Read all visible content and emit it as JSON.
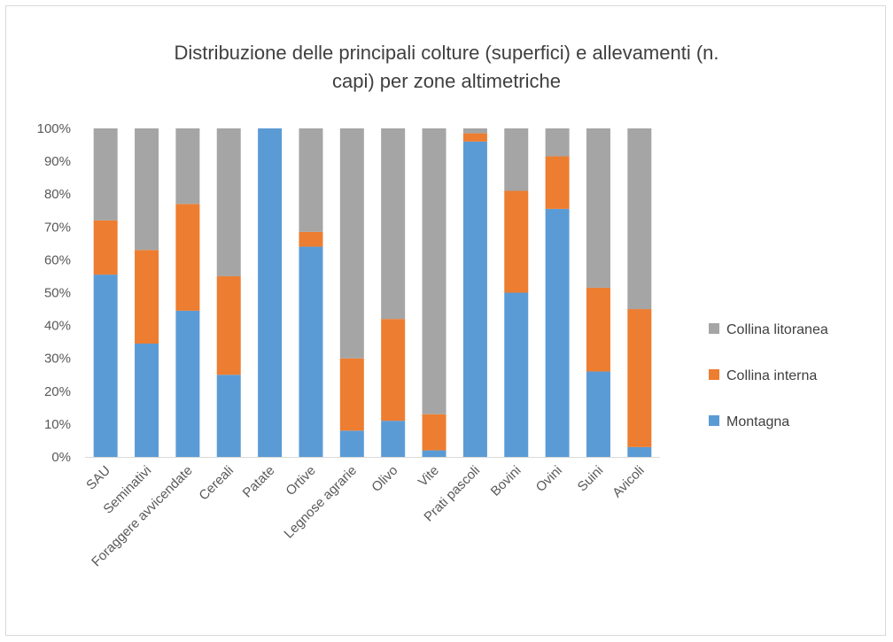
{
  "chart_data": {
    "type": "bar",
    "stacked": true,
    "title_line1": "Distribuzione delle principali colture (superfici) e allevamenti (n.",
    "title_line2": "capi) per zone altimetriche",
    "xlabel": "",
    "ylabel": "",
    "ylim": [
      0,
      100
    ],
    "y_ticks": [
      "0%",
      "10%",
      "20%",
      "30%",
      "40%",
      "50%",
      "60%",
      "70%",
      "80%",
      "90%",
      "100%"
    ],
    "grid": false,
    "legend_position": "right",
    "categories": [
      "SAU",
      "Seminativi",
      "Foraggere avvicendate",
      "Cereali",
      "Patate",
      "Ortive",
      "Legnose agrarie",
      "Olivo",
      "Vite",
      "Prati pascoli",
      "Bovini",
      "Ovini",
      "Suini",
      "Avicoli"
    ],
    "series": [
      {
        "name": "Montagna",
        "color": "#5b9bd5",
        "values": [
          55.5,
          34.5,
          44.5,
          25,
          100,
          64,
          8,
          11,
          2,
          96,
          50,
          75.5,
          26,
          3
        ]
      },
      {
        "name": "Collina interna",
        "color": "#ed7d31",
        "values": [
          16.5,
          28.5,
          32.5,
          30,
          0,
          4.5,
          22,
          31,
          11,
          2.5,
          31,
          16,
          25.5,
          42
        ]
      },
      {
        "name": "Collina litoranea",
        "color": "#a5a5a5",
        "values": [
          28,
          37,
          23,
          45,
          0,
          31.5,
          70,
          58,
          87,
          1.5,
          19,
          8.5,
          48.5,
          55
        ]
      }
    ]
  }
}
